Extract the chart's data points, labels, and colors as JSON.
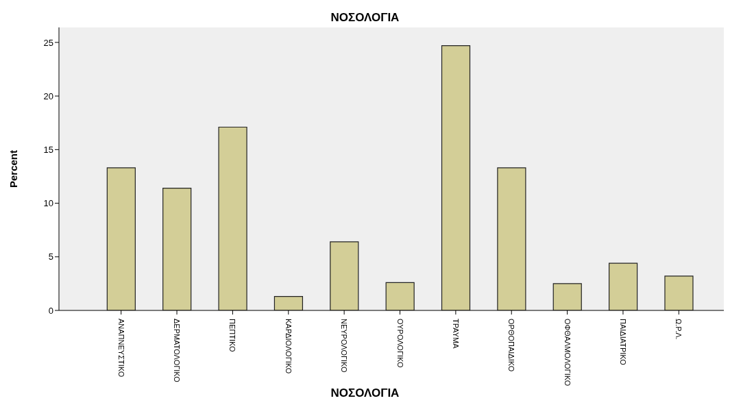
{
  "chart_data": {
    "type": "bar",
    "title": "ΝΟΣΟΛΟΓΙΑ",
    "xlabel": "ΝΟΣΟΛΟΓΙΑ",
    "ylabel": "Percent",
    "categories": [
      "ΑΝΑΠΝΕΥΣΤΙΚΟ",
      "ΔΕΡΜΑΤΟΛΟΓΙΚΟ",
      "ΠΕΠΤΙΚΟ",
      "ΚΑΡΔΙΟΛΟΓΙΚΟ",
      "ΝΕΥΡΟΛΟΓΙΚΟ",
      "ΟΥΡΟΛΟΓΙΚΟ",
      "ΤΡΑΥΜΑ",
      "ΟΡΘΟΠΑΙΔΙΚΟ",
      "ΟΦΘΑΛΜΟΛΟΓΙΚΟ",
      "ΠΑΙΔΙΑΤΡΙΚΟ",
      "Ω.Ρ.Λ."
    ],
    "values": [
      13.3,
      11.4,
      17.1,
      1.3,
      6.4,
      2.6,
      24.7,
      13.3,
      2.5,
      4.4,
      3.2
    ],
    "color": "#d3ce97",
    "ylim": [
      0,
      26.4
    ],
    "yticks": [
      0,
      5,
      10,
      15,
      20,
      25
    ],
    "grid": false,
    "legend": false
  }
}
